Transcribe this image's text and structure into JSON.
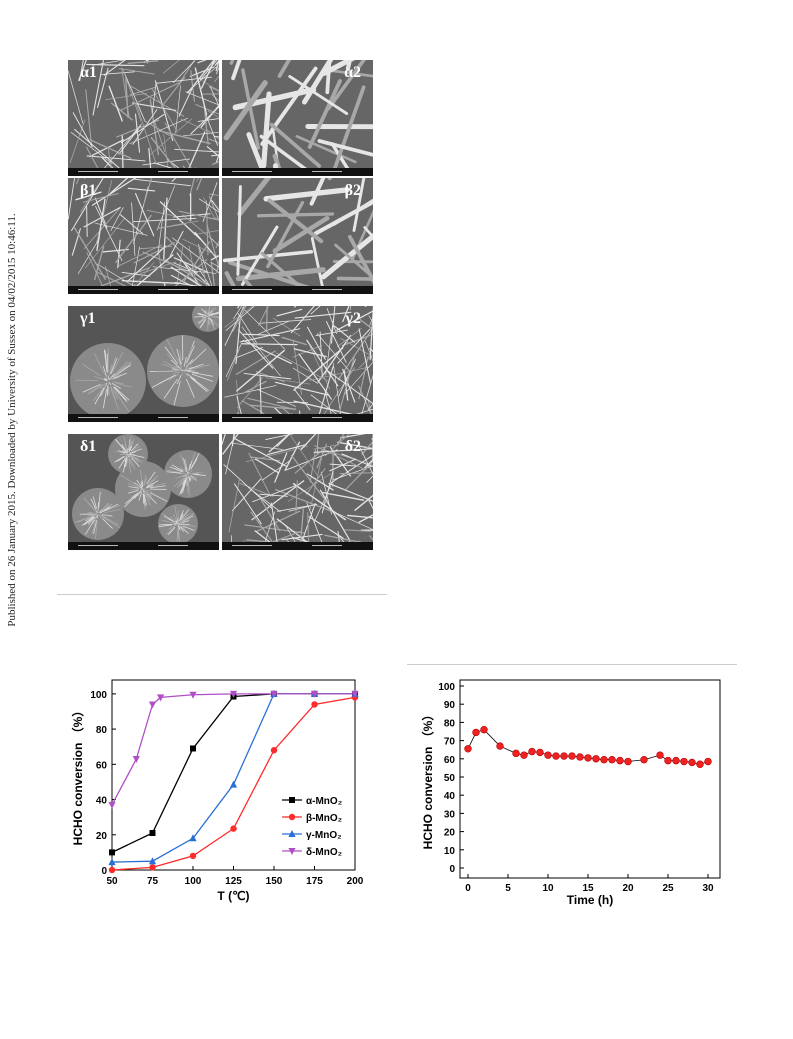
{
  "sidebar": {
    "text": "Published on 26 January 2015. Downloaded by University of Sussex on 04/02/2015 10:46:11."
  },
  "sem_panels": [
    {
      "left": "α1",
      "right": "α2"
    },
    {
      "left": "β1",
      "right": "β2"
    },
    {
      "left": "γ1",
      "right": "γ2"
    },
    {
      "left": "δ1",
      "right": "δ2"
    }
  ],
  "colors": {
    "alpha": "#000000",
    "beta": "#ff2a2a",
    "gamma": "#2a6fd6",
    "delta": "#b050c8",
    "stability": "#ee2222"
  },
  "chart_data": [
    {
      "type": "line",
      "xlabel": "T (℃)",
      "ylabel": "HCHO conversion （%）",
      "xlim": [
        50,
        200
      ],
      "ylim": [
        0,
        100
      ],
      "xticks": [
        50,
        75,
        100,
        125,
        150,
        175,
        200
      ],
      "yticks": [
        0,
        20,
        40,
        60,
        80,
        100
      ],
      "legend_position": "center-right",
      "series": [
        {
          "name": "α-MnO₂",
          "marker": "square",
          "x": [
            50,
            75,
            100,
            125,
            150,
            175,
            200
          ],
          "y": [
            10,
            21,
            69,
            98.5,
            100,
            100,
            100
          ]
        },
        {
          "name": "β-MnO₂",
          "marker": "circle",
          "x": [
            50,
            75,
            100,
            125,
            150,
            175,
            200
          ],
          "y": [
            0,
            1.5,
            8,
            23.5,
            68,
            94,
            98
          ]
        },
        {
          "name": "γ-MnO₂",
          "marker": "triangle-up",
          "x": [
            50,
            75,
            100,
            125,
            150,
            175,
            200
          ],
          "y": [
            4.5,
            5,
            18,
            48.5,
            100,
            100,
            100
          ]
        },
        {
          "name": "δ-MnO₂",
          "marker": "triangle-down",
          "x": [
            50,
            65,
            75,
            80,
            100,
            125,
            150,
            175,
            200
          ],
          "y": [
            37,
            63,
            94,
            98,
            99.5,
            100,
            100,
            100,
            100
          ]
        }
      ]
    },
    {
      "type": "line",
      "xlabel": "Time (h)",
      "ylabel": "HCHO conversion （%）",
      "xlim": [
        0,
        30
      ],
      "ylim": [
        0,
        100
      ],
      "xticks": [
        0,
        5,
        10,
        15,
        20,
        25,
        30
      ],
      "yticks": [
        0,
        10,
        20,
        30,
        40,
        50,
        60,
        70,
        80,
        90,
        100
      ],
      "series": [
        {
          "marker": "circle",
          "x": [
            0,
            1,
            2,
            4,
            6,
            7,
            8,
            9,
            10,
            11,
            12,
            13,
            14,
            15,
            16,
            17,
            18,
            19,
            20,
            22,
            24,
            25,
            26,
            27,
            28,
            29,
            30
          ],
          "y": [
            65.5,
            74.5,
            76,
            67,
            63,
            62,
            64,
            63.5,
            62,
            61.5,
            61.5,
            61.5,
            61,
            60.5,
            60,
            59.5,
            59.5,
            59,
            58.5,
            59.5,
            62,
            59,
            59,
            58.5,
            58,
            57,
            58.5
          ]
        }
      ]
    }
  ]
}
